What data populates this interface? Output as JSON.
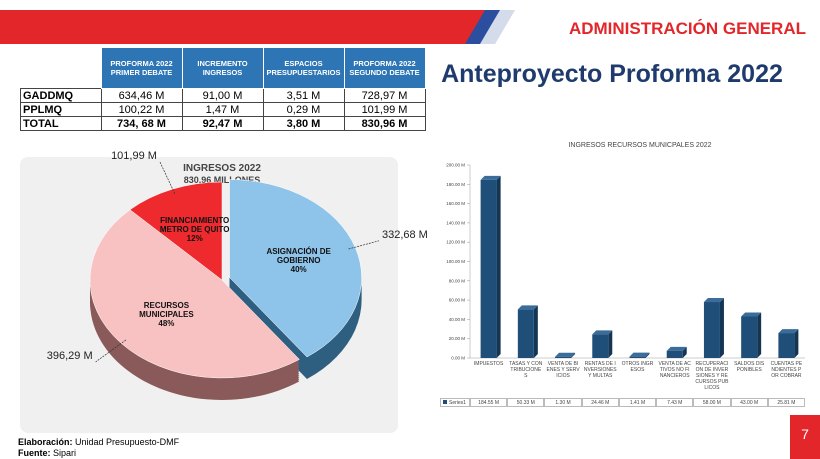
{
  "header": {
    "org": "ADMINISTRACIÓN GENERAL",
    "title": "Anteproyecto Proforma 2022"
  },
  "table": {
    "columns": [
      "PROFORMA 2022 PRIMER DEBATE",
      "INCREMENTO INGRESOS",
      "ESPACIOS PRESUPUESTARIOS",
      "PROFORMA 2022 SEGUNDO DEBATE"
    ],
    "rows": [
      [
        "GADDMQ",
        "634,46 M",
        "91,00 M",
        "3,51 M",
        "728,97 M"
      ],
      [
        "PPLMQ",
        "100,22 M",
        "1,47 M",
        "0,29 M",
        "101,99 M"
      ],
      [
        "TOTAL",
        "734, 68 M",
        "92,47 M",
        "3,80 M",
        "830,96 M"
      ]
    ]
  },
  "chart_data": [
    {
      "type": "pie",
      "title": "INGRESOS 2022",
      "subtitle": "830,96 MILLONES",
      "categories": [
        "ASIGNACIÓN DE GOBIERNO",
        "RECURSOS MUNICIPALES",
        "FINANCIAMIENTO METRO DE QUITO"
      ],
      "values": [
        332.68,
        396.29,
        101.99
      ],
      "value_labels": [
        "332,68 M",
        "396,29 M",
        "101,99 M"
      ],
      "percent_labels": [
        "40%",
        "48%",
        "12%"
      ],
      "colors": [
        "#8ec3ea",
        "#f9c2c2",
        "#ee2a2e"
      ]
    },
    {
      "type": "bar",
      "title": "INGRESOS RECURSOS MUNICPALES 2022",
      "categories": [
        "IMPUESTOS",
        "TASAS Y CONTRIBUCIONES",
        "VENTA DE BIENES Y SERVICIOS",
        "RENTAS DE INVERSIONES Y MULTAS",
        "OTROS INGRESOS",
        "VENTA DE ACTIVOS NO FINANCIEROS",
        "RECUPERACION DE INVERSIONES Y RECURSOS PUBLICOS",
        "SALDOS DISPONIBLES",
        "CUENTAS PENDIENTES POR COBRAR"
      ],
      "series": [
        {
          "name": "Series1",
          "color": "#1f4e79",
          "values": [
            184.55,
            50.33,
            1.3,
            24.46,
            1.41,
            7.43,
            58.0,
            43.0,
            25.81
          ],
          "value_labels": [
            "184.55 M",
            "50.33 M",
            "1.30 M",
            "24.46 M",
            "1.41 M",
            "7.43 M",
            "58.00 M",
            "43.00 M",
            "25.81 M"
          ]
        }
      ],
      "ylim": [
        0,
        200
      ],
      "yticks": [
        {
          "value": 0,
          "label": "0.00 M"
        },
        {
          "value": 20,
          "label": "20.00 M"
        },
        {
          "value": 40,
          "label": "40.00 M"
        },
        {
          "value": 60,
          "label": "60.00 M"
        },
        {
          "value": 80,
          "label": "80.00 M"
        },
        {
          "value": 100,
          "label": "100.00 M"
        },
        {
          "value": 120,
          "label": "120.00 M"
        },
        {
          "value": 140,
          "label": "140.00 M"
        },
        {
          "value": 160,
          "label": "160.00 M"
        },
        {
          "value": 180,
          "label": "180.00 M"
        },
        {
          "value": 200,
          "label": "200.00 M"
        }
      ]
    }
  ],
  "footer": {
    "made_label": "Elaboración:",
    "made": "Unidad Presupuesto-DMF",
    "source_label": "Fuente:",
    "source": "Sipari",
    "page": "7"
  }
}
